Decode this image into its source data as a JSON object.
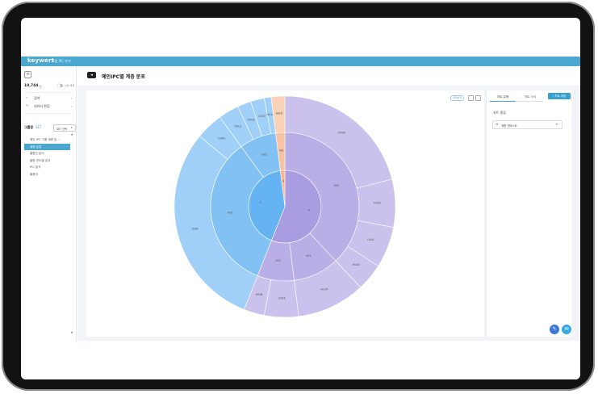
{
  "app": {
    "brand": "keywert",
    "brand_sub": "그룹 IPC 분석"
  },
  "sidebar": {
    "count": "10,744",
    "count_unit": "건",
    "toggle_label": "선택 해제",
    "nav": [
      {
        "label": "검색",
        "icon": "search-icon"
      },
      {
        "label": "데이터 편집",
        "icon": "edit-icon"
      }
    ],
    "group_label": "그룹핑",
    "group_sub": "SET",
    "group_select": "SET 선택",
    "items": [
      "메인 IPC 그룹 계층 분...",
      "계층 분류",
      "출원인 분석",
      "출원 연도별 분석",
      "IPC 분석",
      "불용어"
    ]
  },
  "header": {
    "title": "메인IPC별 계층 분포"
  },
  "toolbar": {
    "view_button": "미리보기"
  },
  "right_panel": {
    "tabs": [
      "차트 유형",
      "차트 서식"
    ],
    "download": "차트 저장",
    "section": "차트 종류",
    "select_value": "계층 선버스트"
  },
  "chart_data": {
    "type": "sunburst",
    "title": "",
    "series_colors": {
      "H": "#aa9ce0",
      "G": "#65b3f2",
      "A": "#f7b68d"
    },
    "rings": [
      {
        "level": "section",
        "segments": [
          {
            "label": "H",
            "value": 56
          },
          {
            "label": "G",
            "value": 42
          },
          {
            "label": "A",
            "value": 2
          }
        ]
      },
      {
        "level": "class",
        "segments": [
          {
            "label": "H04",
            "value": 38
          },
          {
            "label": "H01",
            "value": 10
          },
          {
            "label": "H05",
            "value": 8
          },
          {
            "label": "G06",
            "value": 34
          },
          {
            "label": "G01",
            "value": 8
          },
          {
            "label": "A61",
            "value": 2
          }
        ]
      },
      {
        "level": "group",
        "segments": [
          {
            "label": "H04W",
            "value": 21
          },
          {
            "label": "H04B",
            "value": 7
          },
          {
            "label": "H04L",
            "value": 6
          },
          {
            "label": "H04N",
            "value": 4
          },
          {
            "label": "H01M",
            "value": 10
          },
          {
            "label": "H05K",
            "value": 5
          },
          {
            "label": "H05B",
            "value": 3
          },
          {
            "label": "G06F",
            "value": 30
          },
          {
            "label": "G06Q",
            "value": 4
          },
          {
            "label": "G01S",
            "value": 3
          },
          {
            "label": "G01N",
            "value": 2
          },
          {
            "label": "G01R",
            "value": 2
          },
          {
            "label": "G01C",
            "value": 1
          },
          {
            "label": "A61B",
            "value": 2
          }
        ]
      }
    ]
  }
}
